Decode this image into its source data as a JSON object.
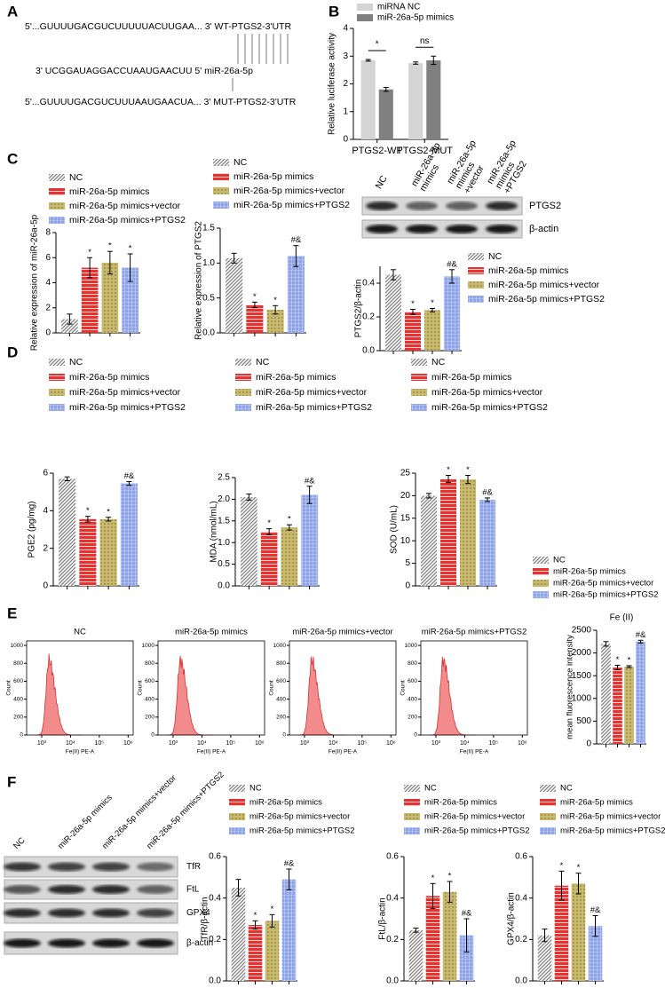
{
  "panel_labels": [
    "A",
    "B",
    "C",
    "D",
    "E",
    "F"
  ],
  "sequences": [
    "5'...GUUUUGACGUCUUUUUACUUGAA... 3' WT-PTGS2-3'UTR",
    "3' UCGGAUAGGACCUAAUGAACUU  5' miR-26a-5p",
    "5'...GUUUUGACGUCUUUAAUGAACUA... 3' MUT-PTGS2-3'UTR"
  ],
  "chart_data": [
    {
      "type": "bar",
      "ylabel": "Relative luciferase activity",
      "categories": [
        "PTGS2-WT",
        "PTGS2-MUT"
      ],
      "ylim": [
        0,
        4
      ],
      "yticks": [
        0,
        1,
        2,
        3,
        4
      ],
      "group_labels": [
        "*",
        "ns"
      ],
      "series": [
        {
          "name": "miRNA NC",
          "color": "#d4d4d4",
          "pattern": "solid",
          "values": [
            2.85,
            2.75
          ],
          "errors": [
            0.03,
            0.04
          ]
        },
        {
          "name": "miR-26a-5p mimics",
          "color": "#808080",
          "pattern": "solid",
          "values": [
            1.8,
            2.85
          ],
          "errors": [
            0.07,
            0.15
          ]
        }
      ]
    },
    {
      "type": "bar",
      "ylabel": "Relative expression of miR-26a-5p",
      "ylim": [
        0,
        8
      ],
      "yticks": [
        0,
        2,
        4,
        6,
        8
      ],
      "bar_labels": [
        null,
        "*",
        "*",
        "*"
      ],
      "series": [
        {
          "name": "NC",
          "color": "#7f7f7f",
          "pattern": "hatch",
          "values": [
            1.1
          ],
          "errors": [
            0.4
          ]
        },
        {
          "name": "miR-26a-5p mimics",
          "color": "#e8322f",
          "pattern": "lines",
          "values": [
            5.2
          ],
          "errors": [
            0.8
          ]
        },
        {
          "name": "miR-26a-5p mimics+vector",
          "color": "#c9b96b",
          "pattern": "dots",
          "values": [
            5.6
          ],
          "errors": [
            0.9
          ]
        },
        {
          "name": "miR-26a-5p mimics+PTGS2",
          "color": "#8ea3ea",
          "pattern": "grid",
          "values": [
            5.2
          ],
          "errors": [
            1.1
          ]
        }
      ]
    },
    {
      "type": "bar",
      "ylabel": "Relative expression of PTGS2",
      "ylim": [
        0,
        1.5
      ],
      "yticks": [
        {
          "value": 0,
          "label": "0.0"
        },
        0.5,
        {
          "value": 1,
          "label": "1.0"
        },
        1.5
      ],
      "bar_labels": [
        null,
        "*",
        "*",
        "#&"
      ],
      "series": [
        {
          "name": "NC",
          "color": "#7f7f7f",
          "pattern": "hatch",
          "values": [
            1.07
          ],
          "errors": [
            0.07
          ]
        },
        {
          "name": "miR-26a-5p mimics",
          "color": "#e8322f",
          "pattern": "lines",
          "values": [
            0.4
          ],
          "errors": [
            0.04
          ]
        },
        {
          "name": "miR-26a-5p mimics+vector",
          "color": "#c9b96b",
          "pattern": "dots",
          "values": [
            0.33
          ],
          "errors": [
            0.06
          ]
        },
        {
          "name": "miR-26a-5p mimics+PTGS2",
          "color": "#8ea3ea",
          "pattern": "grid",
          "values": [
            1.1
          ],
          "errors": [
            0.15
          ]
        }
      ]
    },
    {
      "type": "bar",
      "ylabel": "PTGS2/β-actin",
      "ylim": [
        0,
        0.5
      ],
      "yticks": [
        {
          "value": 0,
          "label": "0.0"
        },
        0.2,
        0.4
      ],
      "bar_labels": [
        null,
        "*",
        "*",
        "#&"
      ],
      "series": [
        {
          "name": "NC",
          "color": "#7f7f7f",
          "pattern": "hatch",
          "values": [
            0.45
          ],
          "errors": [
            0.03
          ]
        },
        {
          "name": "miR-26a-5p mimics",
          "color": "#e8322f",
          "pattern": "lines",
          "values": [
            0.23
          ],
          "errors": [
            0.015
          ]
        },
        {
          "name": "miR-26a-5p mimics+vector",
          "color": "#c9b96b",
          "pattern": "dots",
          "values": [
            0.24
          ],
          "errors": [
            0.01
          ]
        },
        {
          "name": "miR-26a-5p mimics+PTGS2",
          "color": "#8ea3ea",
          "pattern": "grid",
          "values": [
            0.44
          ],
          "errors": [
            0.04
          ]
        }
      ]
    },
    {
      "type": "bar",
      "ylabel": "PGE2 (pg/mg)",
      "ylim": [
        0,
        6
      ],
      "yticks": [
        0,
        2,
        4,
        6
      ],
      "bar_labels": [
        null,
        "*",
        "*",
        "#&"
      ],
      "series": [
        {
          "name": "NC",
          "color": "#7f7f7f",
          "pattern": "hatch",
          "values": [
            5.7
          ],
          "errors": [
            0.1
          ]
        },
        {
          "name": "miR-26a-5p mimics",
          "color": "#e8322f",
          "pattern": "lines",
          "values": [
            3.55
          ],
          "errors": [
            0.15
          ]
        },
        {
          "name": "miR-26a-5p mimics+vector",
          "color": "#c9b96b",
          "pattern": "dots",
          "values": [
            3.55
          ],
          "errors": [
            0.1
          ]
        },
        {
          "name": "miR-26a-5p mimics+PTGS2",
          "color": "#8ea3ea",
          "pattern": "grid",
          "values": [
            5.45
          ],
          "errors": [
            0.1
          ]
        }
      ]
    },
    {
      "type": "bar",
      "ylabel": "MDA (nmol/mL)",
      "ylim": [
        0,
        2.5
      ],
      "yticks": [
        {
          "value": 0,
          "label": "0.0"
        },
        0.5,
        {
          "value": 1,
          "label": "1.0"
        },
        1.5,
        {
          "value": 2,
          "label": "2.0"
        },
        2.5
      ],
      "bar_labels": [
        null,
        "*",
        "*",
        "#&"
      ],
      "series": [
        {
          "name": "NC",
          "color": "#7f7f7f",
          "pattern": "hatch",
          "values": [
            2.05
          ],
          "errors": [
            0.07
          ]
        },
        {
          "name": "miR-26a-5p mimics",
          "color": "#e8322f",
          "pattern": "lines",
          "values": [
            1.25
          ],
          "errors": [
            0.07
          ]
        },
        {
          "name": "miR-26a-5p mimics+vector",
          "color": "#c9b96b",
          "pattern": "dots",
          "values": [
            1.35
          ],
          "errors": [
            0.06
          ]
        },
        {
          "name": "miR-26a-5p mimics+PTGS2",
          "color": "#8ea3ea",
          "pattern": "grid",
          "values": [
            2.1
          ],
          "errors": [
            0.2
          ]
        }
      ]
    },
    {
      "type": "bar",
      "ylabel": "SOD (U/mL)",
      "ylim": [
        0,
        25
      ],
      "yticks": [
        0,
        5,
        10,
        15,
        20,
        25
      ],
      "bar_labels": [
        null,
        "*",
        "*",
        "#&"
      ],
      "series": [
        {
          "name": "NC",
          "color": "#7f7f7f",
          "pattern": "hatch",
          "values": [
            20
          ],
          "errors": [
            0.5
          ]
        },
        {
          "name": "miR-26a-5p mimics",
          "color": "#e8322f",
          "pattern": "lines",
          "values": [
            23.7
          ],
          "errors": [
            0.8
          ]
        },
        {
          "name": "miR-26a-5p mimics+vector",
          "color": "#c9b96b",
          "pattern": "dots",
          "values": [
            23.6
          ],
          "errors": [
            0.9
          ]
        },
        {
          "name": "miR-26a-5p mimics+PTGS2",
          "color": "#8ea3ea",
          "pattern": "grid",
          "values": [
            19.1
          ],
          "errors": [
            0.4
          ]
        }
      ]
    },
    {
      "type": "bar",
      "title": "Fe (II)",
      "ylabel": "mean fluorescence intensity",
      "ylim": [
        0,
        2500
      ],
      "yticks": [
        0,
        500,
        1000,
        1500,
        2000,
        2500
      ],
      "bar_labels": [
        null,
        "*",
        "*",
        "#&"
      ],
      "series": [
        {
          "name": "NC",
          "color": "#7f7f7f",
          "pattern": "hatch",
          "values": [
            2200
          ],
          "errors": [
            50
          ]
        },
        {
          "name": "miR-26a-5p mimics",
          "color": "#e8322f",
          "pattern": "lines",
          "values": [
            1680
          ],
          "errors": [
            50
          ]
        },
        {
          "name": "miR-26a-5p mimics+vector",
          "color": "#c9b96b",
          "pattern": "dots",
          "values": [
            1700
          ],
          "errors": [
            20
          ]
        },
        {
          "name": "miR-26a-5p mimics+PTGS2",
          "color": "#8ea3ea",
          "pattern": "grid",
          "values": [
            2250
          ],
          "errors": [
            30
          ]
        }
      ]
    },
    {
      "type": "bar",
      "ylabel": "TfR/β-actin",
      "ylim": [
        0,
        0.6
      ],
      "yticks": [
        {
          "value": 0,
          "label": "0.0"
        },
        0.2,
        0.4,
        0.6
      ],
      "bar_labels": [
        null,
        "*",
        "*",
        "#&"
      ],
      "series": [
        {
          "name": "NC",
          "color": "#7f7f7f",
          "pattern": "hatch",
          "values": [
            0.45
          ],
          "errors": [
            0.04
          ]
        },
        {
          "name": "miR-26a-5p mimics",
          "color": "#e8322f",
          "pattern": "lines",
          "values": [
            0.27
          ],
          "errors": [
            0.02
          ]
        },
        {
          "name": "miR-26a-5p mimics+vector",
          "color": "#c9b96b",
          "pattern": "dots",
          "values": [
            0.29
          ],
          "errors": [
            0.03
          ]
        },
        {
          "name": "miR-26a-5p mimics+PTGS2",
          "color": "#8ea3ea",
          "pattern": "grid",
          "values": [
            0.49
          ],
          "errors": [
            0.05
          ]
        }
      ]
    },
    {
      "type": "bar",
      "ylabel": "FtL/β-actin",
      "ylim": [
        0,
        0.6
      ],
      "yticks": [
        {
          "value": 0,
          "label": "0.0"
        },
        0.2,
        0.4,
        0.6
      ],
      "bar_labels": [
        null,
        "*",
        "*",
        "#&"
      ],
      "series": [
        {
          "name": "NC",
          "color": "#7f7f7f",
          "pattern": "hatch",
          "values": [
            0.245
          ],
          "errors": [
            0.01
          ]
        },
        {
          "name": "miR-26a-5p mimics",
          "color": "#e8322f",
          "pattern": "lines",
          "values": [
            0.41
          ],
          "errors": [
            0.06
          ]
        },
        {
          "name": "miR-26a-5p mimics+vector",
          "color": "#c9b96b",
          "pattern": "dots",
          "values": [
            0.43
          ],
          "errors": [
            0.05
          ]
        },
        {
          "name": "miR-26a-5p mimics+PTGS2",
          "color": "#8ea3ea",
          "pattern": "grid",
          "values": [
            0.22
          ],
          "errors": [
            0.08
          ]
        }
      ]
    },
    {
      "type": "bar",
      "ylabel": "GPX4/β-actin",
      "ylim": [
        0,
        0.6
      ],
      "yticks": [
        {
          "value": 0,
          "label": "0.0"
        },
        0.2,
        0.4,
        0.6
      ],
      "bar_labels": [
        null,
        "*",
        "*",
        "#&"
      ],
      "series": [
        {
          "name": "NC",
          "color": "#7f7f7f",
          "pattern": "hatch",
          "values": [
            0.22
          ],
          "errors": [
            0.03
          ]
        },
        {
          "name": "miR-26a-5p mimics",
          "color": "#e8322f",
          "pattern": "lines",
          "values": [
            0.46
          ],
          "errors": [
            0.07
          ]
        },
        {
          "name": "miR-26a-5p mimics+vector",
          "color": "#c9b96b",
          "pattern": "dots",
          "values": [
            0.47
          ],
          "errors": [
            0.05
          ]
        },
        {
          "name": "miR-26a-5p mimics+PTGS2",
          "color": "#8ea3ea",
          "pattern": "grid",
          "values": [
            0.265
          ],
          "errors": [
            0.05
          ]
        }
      ]
    }
  ],
  "flow": {
    "x_label": "Fe(II) PE-A",
    "y_label": "Count",
    "xscale": "log",
    "xlim": [
      300,
      1500000
    ],
    "xticks": [
      {
        "value": 1000,
        "label": "10³"
      },
      {
        "value": 10000,
        "label": "10⁴"
      },
      {
        "value": 100000,
        "label": "10⁵"
      },
      {
        "value": 1000000,
        "label": "10⁶"
      }
    ],
    "ylim": [
      0,
      1050
    ],
    "yticks": [
      0,
      200,
      400,
      600,
      800,
      1000
    ],
    "titles": [
      "NC",
      "miR-26a-5p mimics",
      "miR-26a-5p mimics+vector",
      "miR-26a-5p mimics+PTGS2"
    ]
  },
  "blot_c": {
    "lanes": [
      [
        "NC"
      ],
      [
        "miR-26a-5p",
        "mimics"
      ],
      [
        "miR-26a-5p",
        "mimics",
        "+vector"
      ],
      [
        "miR-26a-5p",
        "mimics",
        "+PTGS2"
      ]
    ],
    "rows": [
      "PTGS2",
      "β-actin"
    ]
  },
  "blot_f": {
    "lanes": [
      "NC",
      "miR-26a-5p mimics",
      "miR-26a-5p mimics+vector",
      "miR-26a-5p mimics+PTGS2"
    ],
    "rows": [
      "TfR",
      "FtL",
      "GPX4",
      "β-actin"
    ]
  }
}
